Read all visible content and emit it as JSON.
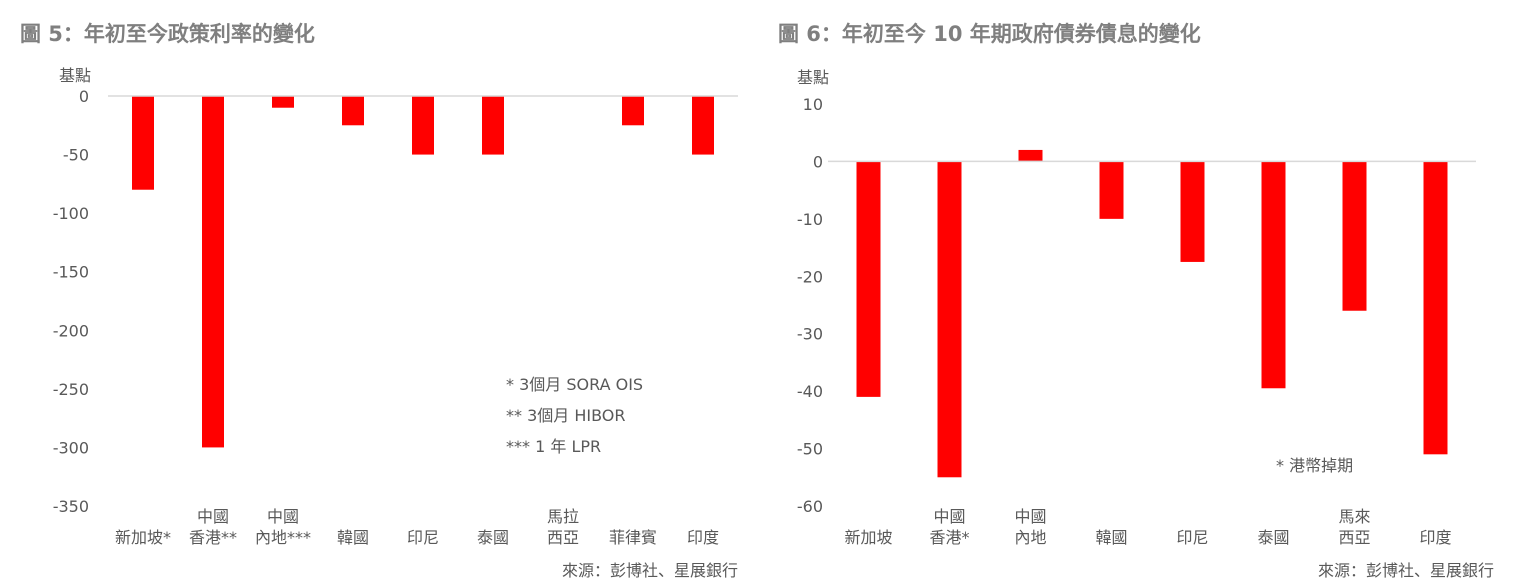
{
  "chart_data": [
    {
      "type": "bar",
      "title": "圖 5：年初至今政策利率的變化",
      "ylabel": "基點",
      "ylim": [
        -350,
        0
      ],
      "yticks": [
        0,
        -50,
        -100,
        -150,
        -200,
        -250,
        -300,
        -350
      ],
      "grid": false,
      "categories": [
        [
          "新加坡*"
        ],
        [
          "中國",
          "香港**"
        ],
        [
          "中國",
          "內地***"
        ],
        [
          "韓國"
        ],
        [
          "印尼"
        ],
        [
          "泰國"
        ],
        [
          "馬拉",
          "西亞"
        ],
        [
          "菲律賓"
        ],
        [
          "印度"
        ]
      ],
      "values": [
        -80,
        -300,
        -10,
        -25,
        -50,
        -50,
        0,
        -25,
        -50
      ],
      "bar_color": "#ff0000",
      "notes": [
        "* 3個月 SORA OIS",
        "** 3個月 HIBOR",
        "*** 1 年 LPR"
      ],
      "source": "來源：彭博社、星展銀行"
    },
    {
      "type": "bar",
      "title": "圖 6：年初至今 10 年期政府債券債息的變化",
      "ylabel": "基點",
      "ylim": [
        -60,
        10
      ],
      "yticks": [
        10,
        0,
        -10,
        -20,
        -30,
        -40,
        -50,
        -60
      ],
      "grid": false,
      "categories": [
        [
          "新加坡"
        ],
        [
          "中國",
          "香港*"
        ],
        [
          "中國",
          "內地"
        ],
        [
          "韓國"
        ],
        [
          "印尼"
        ],
        [
          "泰國"
        ],
        [
          "馬來",
          "西亞"
        ],
        [
          "印度"
        ]
      ],
      "values": [
        -41,
        -55,
        2,
        -10,
        -17.5,
        -39.5,
        -26,
        -51
      ],
      "bar_color": "#ff0000",
      "notes": [
        "* 港幣掉期"
      ],
      "source": "來源：彭博社、星展銀行"
    }
  ]
}
